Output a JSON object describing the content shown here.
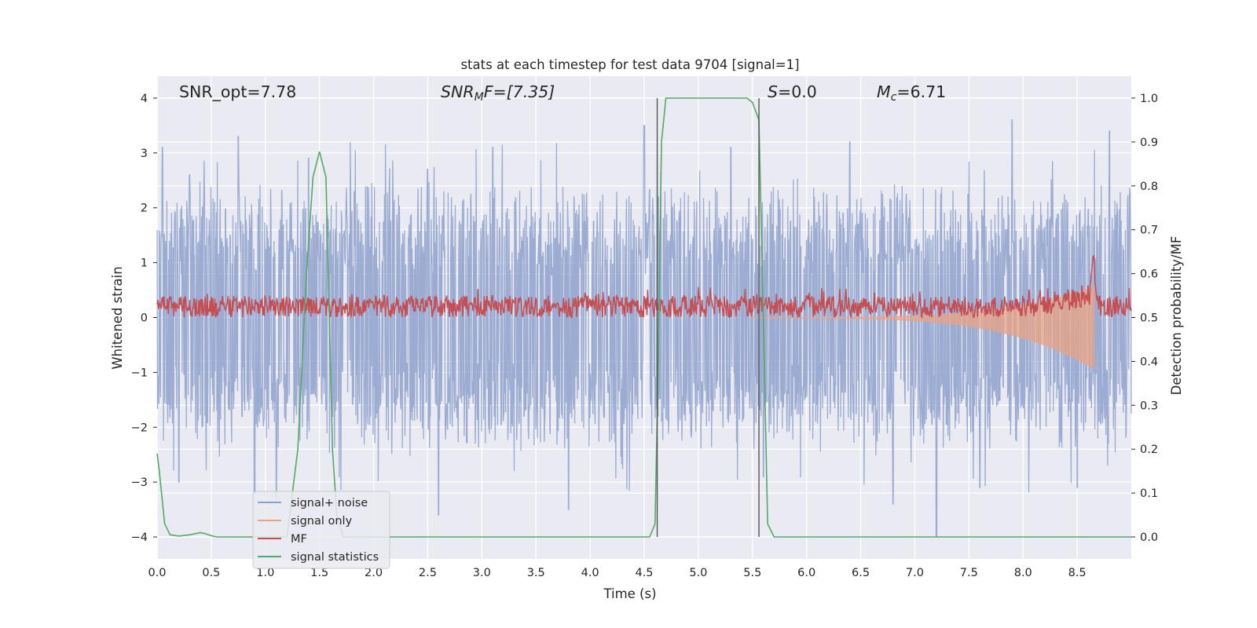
{
  "chart_data": {
    "type": "line",
    "title": "stats at each timestep for test data 9704 [signal=1]",
    "xlabel": "Time (s)",
    "ylabel_left": "Whitened strain",
    "ylabel_right": "Detection probability/MF",
    "xlim": [
      0.0,
      9.0
    ],
    "ylim_left": [
      -4.4,
      4.4
    ],
    "ylim_right": [
      -0.05,
      1.05
    ],
    "x_ticks": [
      "0.0",
      "0.5",
      "1.0",
      "1.5",
      "2.0",
      "2.5",
      "3.0",
      "3.5",
      "4.0",
      "4.5",
      "5.0",
      "5.5",
      "6.0",
      "6.5",
      "7.0",
      "7.5",
      "8.0",
      "8.5"
    ],
    "y_left_ticks": [
      "−4",
      "−3",
      "−2",
      "−1",
      "0",
      "1",
      "2",
      "3",
      "4"
    ],
    "y_right_ticks": [
      "0.0",
      "0.1",
      "0.2",
      "0.3",
      "0.4",
      "0.5",
      "0.6",
      "0.7",
      "0.8",
      "0.9",
      "1.0"
    ],
    "grid": true,
    "annotations": {
      "snr_opt": "SNR_opt=7.78",
      "snr_mf_label": "SNR",
      "snr_mf_sub": "M",
      "snr_mf_rest": "F=[7.35]",
      "s_label": "S",
      "s_rest": "=0.0",
      "mc_label": "M",
      "mc_sub": "c",
      "mc_rest": "=6.71"
    },
    "vlines_x": [
      4.62,
      5.56
    ],
    "series": [
      {
        "name": "signal+ noise",
        "color": "#8da0cb",
        "axis": "left",
        "noise_band": [
          -1.6,
          1.6
        ],
        "peaks_upper": [
          [
            0.05,
            3.1
          ],
          [
            0.3,
            2.6
          ],
          [
            0.75,
            3.3
          ],
          [
            1.4,
            2.9
          ],
          [
            2.5,
            2.7
          ],
          [
            3.1,
            3.1
          ],
          [
            4.5,
            3.5
          ],
          [
            5.3,
            3.1
          ],
          [
            6.4,
            3.2
          ],
          [
            7.9,
            3.6
          ],
          [
            8.8,
            3.4
          ]
        ],
        "peaks_lower": [
          [
            0.2,
            -3.0
          ],
          [
            0.9,
            -3.2
          ],
          [
            1.1,
            -3.3
          ],
          [
            2.6,
            -3.6
          ],
          [
            3.8,
            -3.5
          ],
          [
            5.6,
            -2.9
          ],
          [
            6.8,
            -3.4
          ],
          [
            7.2,
            -4.0
          ],
          [
            7.6,
            -3.1
          ],
          [
            8.5,
            -3.1
          ]
        ]
      },
      {
        "name": "signal only",
        "color": "#e9a383",
        "axis": "left",
        "chirp_start": 5.5,
        "chirp_end": 8.66,
        "chirp_env_start": 0.02,
        "chirp_env_end": 0.95
      },
      {
        "name": "MF",
        "color": "#c44e52",
        "axis": "right",
        "base": 0.525,
        "jitter": 0.025,
        "peak": [
          8.65,
          0.62
        ]
      },
      {
        "name": "signal statistics",
        "color": "#55a868",
        "axis": "right",
        "x": [
          0.0,
          0.02,
          0.07,
          0.12,
          0.2,
          0.3,
          0.4,
          0.44,
          0.5,
          0.55,
          0.6,
          1.2,
          1.3,
          1.38,
          1.44,
          1.5,
          1.56,
          1.62,
          1.66,
          1.72,
          4.55,
          4.6,
          4.63,
          4.66,
          4.7,
          5.45,
          5.5,
          5.53,
          5.56,
          5.6,
          5.64,
          5.7,
          9.0
        ],
        "y": [
          0.19,
          0.15,
          0.03,
          0.005,
          0.002,
          0.005,
          0.01,
          0.008,
          0.003,
          0.0,
          0.0,
          0.0,
          0.2,
          0.6,
          0.82,
          0.878,
          0.82,
          0.2,
          0.05,
          0.0,
          0.0,
          0.03,
          0.4,
          0.9,
          1.0,
          1.0,
          0.99,
          0.97,
          0.95,
          0.5,
          0.03,
          0.0,
          0.0
        ]
      }
    ],
    "legend_position": "lower-left"
  }
}
